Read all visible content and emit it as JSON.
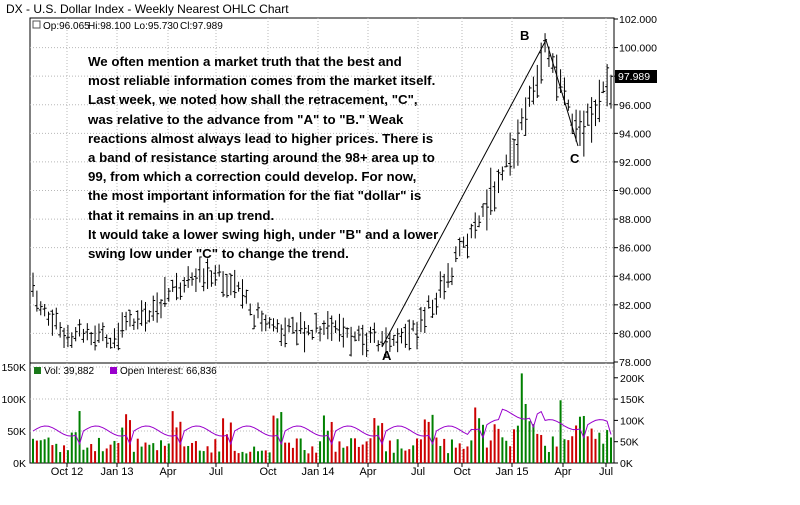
{
  "chart_title": "DX - U.S. Dollar Index - Weekly Nearest OHLC Chart",
  "price_panel": {
    "readout_open": "Op:96.065",
    "readout_high": "Hi:98.100",
    "readout_low": "Lo:95.730",
    "readout_close": "Cl:97.989",
    "last_price_tag": "97.989",
    "point_labels": [
      "A",
      "B",
      "C"
    ]
  },
  "annotation_lines": [
    "We often mention a market truth that the best and",
    "most reliable information comes from the market itself.",
    "Last week, we noted how shall the retracement, \"C\",",
    "was relative to the advance from \"A\" to \"B.\"  Weak",
    "reactions almost always lead to higher prices.   There is",
    "a band of resistance starting around the 98+ area up to",
    "99, from which a correction could develop.  For now,",
    "the most important information for the fiat \"dollar\" is",
    "that it remains in an up trend.",
    "It would take a lower swing high, under \"B\" and a lower",
    "swing low under \"C\" to change the trend."
  ],
  "volume_panel": {
    "vol_legend": "Vol: 39,882",
    "oi_legend": "Open Interest: 66,836",
    "vol_color": "#1a7a1a",
    "oi_color": "#9900cc"
  },
  "colors": {
    "up_bar": "#008000",
    "down_bar": "#cc0000",
    "oi_line": "#9900cc",
    "price_bar": "#000000",
    "grid": "#b8b8b8"
  },
  "chart_data": {
    "type": "ohlc",
    "title": "DX - U.S. Dollar Index - Weekly Nearest OHLC Chart",
    "x_labels": [
      "Oct 12",
      "Jan 13",
      "Apr",
      "Jul",
      "Oct",
      "Jan 14",
      "Apr",
      "Jul",
      "Oct",
      "Jan 15",
      "Apr",
      "Jul"
    ],
    "price_axis": {
      "ticks": [
        "78.000",
        "80.000",
        "82.000",
        "84.000",
        "86.000",
        "88.000",
        "90.000",
        "92.000",
        "94.000",
        "96.000",
        "98.000",
        "100.000",
        "102.000"
      ],
      "range": [
        78,
        102
      ],
      "grid": true
    },
    "volume_axis_left": {
      "ticks": [
        "0K",
        "50K",
        "100K",
        "150K"
      ],
      "range": [
        0,
        150000
      ]
    },
    "volume_axis_right": {
      "ticks": [
        "0K",
        "50K",
        "100K",
        "150K",
        "200K"
      ],
      "range": [
        0,
        230000
      ]
    },
    "price_path_keypoints": [
      [
        "Sep 2012",
        83.3
      ],
      [
        "Oct 2012",
        80.2
      ],
      [
        "Jan 2013",
        79.8
      ],
      [
        "Apr 2013",
        82.6
      ],
      [
        "Jul 2013",
        84.6
      ],
      [
        "Oct 2013",
        80.2
      ],
      [
        "Jan 2014",
        80.4
      ],
      [
        "Apr 2014",
        79.6
      ],
      [
        "May 2014",
        79.3
      ],
      [
        "Jul 2014",
        80.3
      ],
      [
        "Oct 2014",
        85.8
      ],
      [
        "Jan 2015",
        92.5
      ],
      [
        "Mar 2015",
        100.1
      ],
      [
        "Apr 2015",
        94.0
      ],
      [
        "May 2015",
        95.0
      ],
      [
        "Jul 2015",
        97.989
      ]
    ],
    "swing_points": [
      {
        "label": "A",
        "date": "May 2014",
        "price": 78.9
      },
      {
        "label": "B",
        "date": "Mar 2015",
        "price": 100.4
      },
      {
        "label": "C",
        "date": "May 2015",
        "price": 93.2
      }
    ],
    "last": {
      "open": 96.065,
      "high": 98.1,
      "low": 95.73,
      "close": 97.989,
      "volume": 39882,
      "open_interest": 66836
    },
    "series": [
      {
        "name": "Vol",
        "kind": "volume_bars"
      },
      {
        "name": "Open Interest",
        "kind": "line"
      }
    ]
  }
}
